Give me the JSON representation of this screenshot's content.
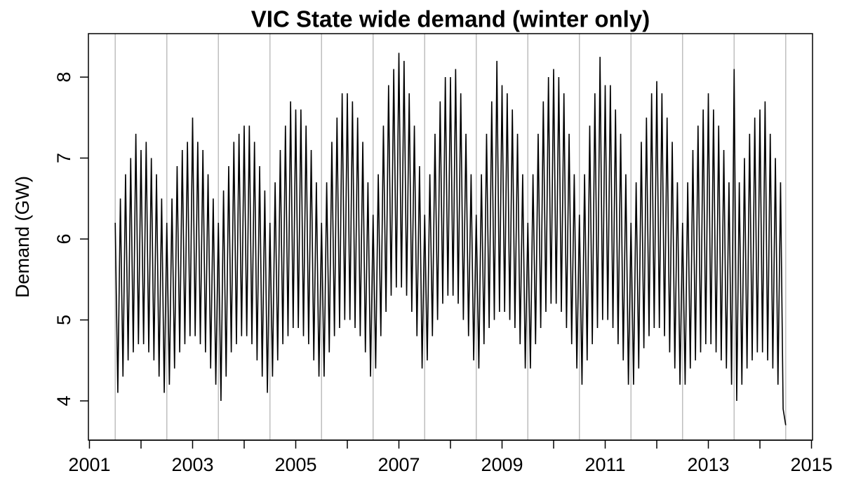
{
  "chart_data": {
    "type": "line",
    "title": "VIC State wide demand (winter only)",
    "ylabel": "Demand (GW)",
    "color": "#000000",
    "x": [
      2001.5,
      2001.55,
      2001.6,
      2001.65,
      2001.7,
      2001.75,
      2001.8,
      2001.85,
      2001.9,
      2001.95,
      2002,
      2002.05,
      2002.1,
      2002.15,
      2002.2,
      2002.25,
      2002.3,
      2002.35,
      2002.4,
      2002.45,
      2002.5,
      2002.55,
      2002.6,
      2002.65,
      2002.7,
      2002.75,
      2002.8,
      2002.85,
      2002.9,
      2002.95,
      2003,
      2003.05,
      2003.1,
      2003.15,
      2003.2,
      2003.25,
      2003.3,
      2003.35,
      2003.4,
      2003.45,
      2003.5,
      2003.55,
      2003.6,
      2003.65,
      2003.7,
      2003.75,
      2003.8,
      2003.85,
      2003.9,
      2003.95,
      2004,
      2004.05,
      2004.1,
      2004.15,
      2004.2,
      2004.25,
      2004.3,
      2004.35,
      2004.4,
      2004.45,
      2004.5,
      2004.55,
      2004.6,
      2004.65,
      2004.7,
      2004.75,
      2004.8,
      2004.85,
      2004.9,
      2004.95,
      2005,
      2005.05,
      2005.1,
      2005.15,
      2005.2,
      2005.25,
      2005.3,
      2005.35,
      2005.4,
      2005.45,
      2005.5,
      2005.55,
      2005.6,
      2005.65,
      2005.7,
      2005.75,
      2005.8,
      2005.85,
      2005.9,
      2005.95,
      2006,
      2006.05,
      2006.1,
      2006.15,
      2006.2,
      2006.25,
      2006.3,
      2006.35,
      2006.4,
      2006.45,
      2006.5,
      2006.55,
      2006.6,
      2006.65,
      2006.7,
      2006.75,
      2006.8,
      2006.85,
      2006.9,
      2006.95,
      2007,
      2007.05,
      2007.1,
      2007.15,
      2007.2,
      2007.25,
      2007.3,
      2007.35,
      2007.4,
      2007.45,
      2007.5,
      2007.55,
      2007.6,
      2007.65,
      2007.7,
      2007.75,
      2007.8,
      2007.85,
      2007.9,
      2007.95,
      2008,
      2008.05,
      2008.1,
      2008.15,
      2008.2,
      2008.25,
      2008.3,
      2008.35,
      2008.4,
      2008.45,
      2008.5,
      2008.55,
      2008.6,
      2008.65,
      2008.7,
      2008.75,
      2008.8,
      2008.85,
      2008.9,
      2008.95,
      2009,
      2009.05,
      2009.1,
      2009.15,
      2009.2,
      2009.25,
      2009.3,
      2009.35,
      2009.4,
      2009.45,
      2009.5,
      2009.55,
      2009.6,
      2009.65,
      2009.7,
      2009.75,
      2009.8,
      2009.85,
      2009.9,
      2009.95,
      2010,
      2010.05,
      2010.1,
      2010.15,
      2010.2,
      2010.25,
      2010.3,
      2010.35,
      2010.4,
      2010.45,
      2010.5,
      2010.55,
      2010.6,
      2010.65,
      2010.7,
      2010.75,
      2010.8,
      2010.85,
      2010.9,
      2010.95,
      2011,
      2011.05,
      2011.1,
      2011.15,
      2011.2,
      2011.25,
      2011.3,
      2011.35,
      2011.4,
      2011.45,
      2011.5,
      2011.55,
      2011.6,
      2011.65,
      2011.7,
      2011.75,
      2011.8,
      2011.85,
      2011.9,
      2011.95,
      2012,
      2012.05,
      2012.1,
      2012.15,
      2012.2,
      2012.25,
      2012.3,
      2012.35,
      2012.4,
      2012.45,
      2012.5,
      2012.55,
      2012.6,
      2012.65,
      2012.7,
      2012.75,
      2012.8,
      2012.85,
      2012.9,
      2012.95,
      2013,
      2013.05,
      2013.1,
      2013.15,
      2013.2,
      2013.25,
      2013.3,
      2013.35,
      2013.4,
      2013.45,
      2013.5,
      2013.55,
      2013.6,
      2013.65,
      2013.7,
      2013.75,
      2013.8,
      2013.85,
      2013.9,
      2013.95,
      2014,
      2014.05,
      2014.1,
      2014.15,
      2014.2,
      2014.25,
      2014.3,
      2014.35,
      2014.4,
      2014.45,
      2014.5
    ],
    "values": [
      6.2,
      4.1,
      6.5,
      4.3,
      6.8,
      4.5,
      7.0,
      4.6,
      7.3,
      4.7,
      7.1,
      4.7,
      7.2,
      4.6,
      7.0,
      4.5,
      6.8,
      4.3,
      6.5,
      4.1,
      6.2,
      4.2,
      6.5,
      4.4,
      6.9,
      4.6,
      7.1,
      4.7,
      7.2,
      4.8,
      7.5,
      4.8,
      7.2,
      4.7,
      7.1,
      4.6,
      6.8,
      4.4,
      6.5,
      4.2,
      6.2,
      4.0,
      6.6,
      4.3,
      6.9,
      4.6,
      7.2,
      4.7,
      7.3,
      4.8,
      7.4,
      4.8,
      7.4,
      4.7,
      7.2,
      4.5,
      6.9,
      4.3,
      6.6,
      4.1,
      6.2,
      4.3,
      6.7,
      4.5,
      7.1,
      4.7,
      7.4,
      4.8,
      7.7,
      4.9,
      7.6,
      4.9,
      7.6,
      4.8,
      7.4,
      4.7,
      7.1,
      4.5,
      6.7,
      4.3,
      6.2,
      4.3,
      6.7,
      4.6,
      7.2,
      4.8,
      7.5,
      4.9,
      7.8,
      5.0,
      7.8,
      5.0,
      7.7,
      4.9,
      7.5,
      4.8,
      7.2,
      4.6,
      6.7,
      4.3,
      6.3,
      4.4,
      6.8,
      4.8,
      7.4,
      5.1,
      7.9,
      5.3,
      8.1,
      5.4,
      8.3,
      5.4,
      8.2,
      5.3,
      7.8,
      5.1,
      7.4,
      4.8,
      6.9,
      4.4,
      6.3,
      4.5,
      6.8,
      4.8,
      7.3,
      5.0,
      7.7,
      5.2,
      8.0,
      5.3,
      8.0,
      5.3,
      8.1,
      5.2,
      7.8,
      5.0,
      7.3,
      4.8,
      6.8,
      4.5,
      6.3,
      4.4,
      6.8,
      4.7,
      7.3,
      4.9,
      7.7,
      5.0,
      8.2,
      5.1,
      7.9,
      5.1,
      7.8,
      5.0,
      7.6,
      4.9,
      7.3,
      4.7,
      6.8,
      4.4,
      6.2,
      4.4,
      6.8,
      4.7,
      7.3,
      4.9,
      7.7,
      5.1,
      8.0,
      5.2,
      8.1,
      5.2,
      8.0,
      5.1,
      7.8,
      4.9,
      7.3,
      4.7,
      6.8,
      4.4,
      6.3,
      4.2,
      6.8,
      4.5,
      7.4,
      4.7,
      7.8,
      4.9,
      8.25,
      5.0,
      7.9,
      5.0,
      7.9,
      4.9,
      7.6,
      4.7,
      7.3,
      4.5,
      6.8,
      4.2,
      6.2,
      4.2,
      6.7,
      4.4,
      7.2,
      4.65,
      7.5,
      4.8,
      7.8,
      4.9,
      7.95,
      4.9,
      7.8,
      4.8,
      7.5,
      4.6,
      7.2,
      4.4,
      6.7,
      4.2,
      6.2,
      4.2,
      6.7,
      4.4,
      7.1,
      4.5,
      7.4,
      4.6,
      7.6,
      4.7,
      7.8,
      4.7,
      7.6,
      4.6,
      7.4,
      4.5,
      7.1,
      4.4,
      6.7,
      4.2,
      8.1,
      4.0,
      6.7,
      4.2,
      7.0,
      4.4,
      7.3,
      4.5,
      7.5,
      4.6,
      7.6,
      4.6,
      7.7,
      4.5,
      7.3,
      4.4,
      7.0,
      4.2,
      6.7,
      3.9,
      3.7
    ],
    "xlim": [
      2000.98,
      2015.02
    ],
    "ylim": [
      3.515,
      8.537
    ],
    "xticks": [
      2001,
      2003,
      2005,
      2007,
      2009,
      2011,
      2013,
      2015
    ],
    "xticks_unlabeled": [
      2002,
      2004,
      2006,
      2008,
      2010,
      2012,
      2014
    ],
    "yticks": [
      4,
      5,
      6,
      7,
      8
    ],
    "vlines": [
      2001.5,
      2002.5,
      2003.5,
      2004.5,
      2005.5,
      2006.5,
      2007.5,
      2008.5,
      2009.5,
      2010.5,
      2011.5,
      2012.5,
      2013.5,
      2014.5
    ],
    "vline_color": "#bebebe"
  }
}
